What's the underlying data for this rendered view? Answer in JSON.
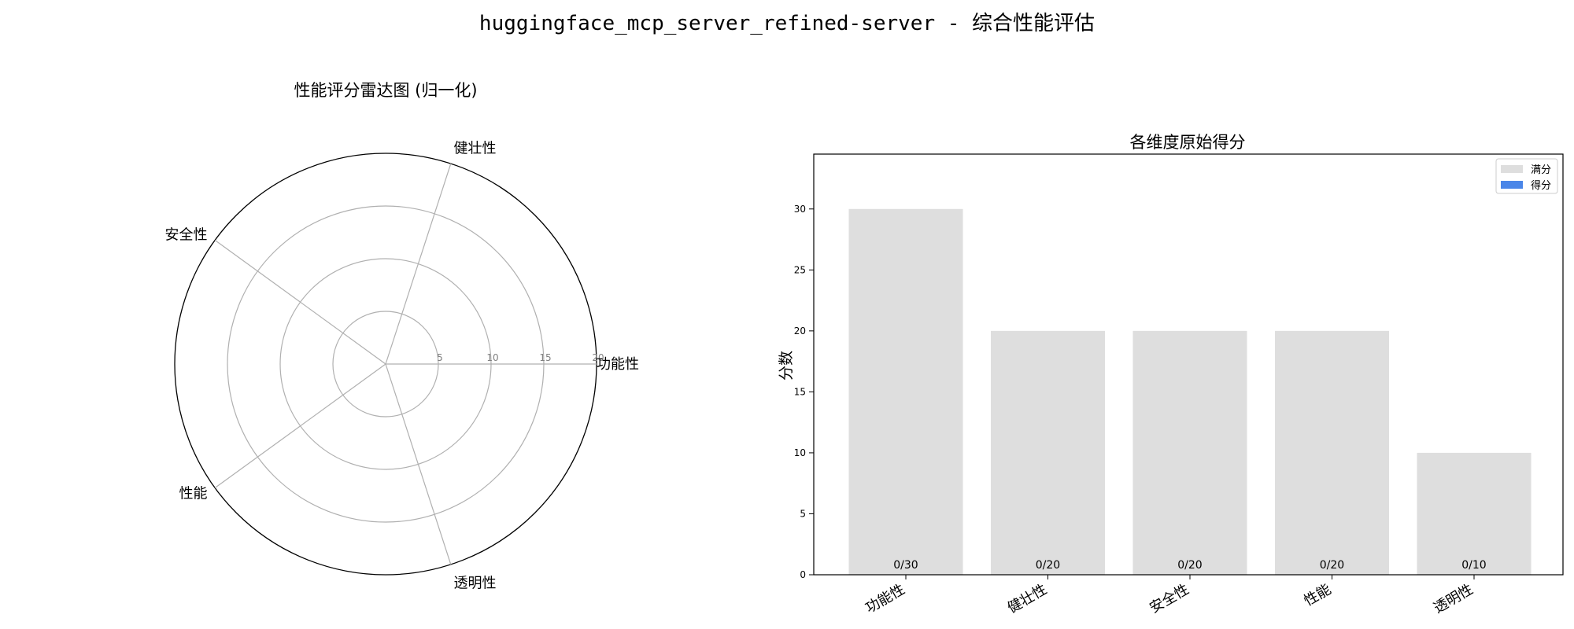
{
  "figure": {
    "suptitle": "huggingface_mcp_server_refined-server - 综合性能评估"
  },
  "chart_data": [
    {
      "type": "radar",
      "title": "性能评分雷达图 (归一化)",
      "categories": [
        "功能性",
        "健壮性",
        "安全性",
        "性能",
        "透明性"
      ],
      "radial_ticks": [
        5,
        10,
        15,
        20
      ],
      "rlim": [
        0,
        20
      ],
      "series": [
        {
          "values": [
            0,
            0,
            0,
            0,
            0
          ]
        }
      ],
      "grid": true
    },
    {
      "type": "bar",
      "title": "各维度原始得分",
      "ylabel": "分数",
      "categories": [
        "功能性",
        "健壮性",
        "安全性",
        "性能",
        "透明性"
      ],
      "series": [
        {
          "name": "满分",
          "values": [
            30,
            20,
            20,
            20,
            10
          ],
          "color": "#dedede"
        },
        {
          "name": "得分",
          "values": [
            0,
            0,
            0,
            0,
            0
          ],
          "color": "#4a86e8"
        }
      ],
      "bar_labels": [
        "0/30",
        "0/20",
        "0/20",
        "0/20",
        "0/10"
      ],
      "yticks": [
        0,
        5,
        10,
        15,
        20,
        25,
        30
      ],
      "ylim": [
        0,
        34.5
      ],
      "legend": "top-right",
      "grid": false
    }
  ]
}
